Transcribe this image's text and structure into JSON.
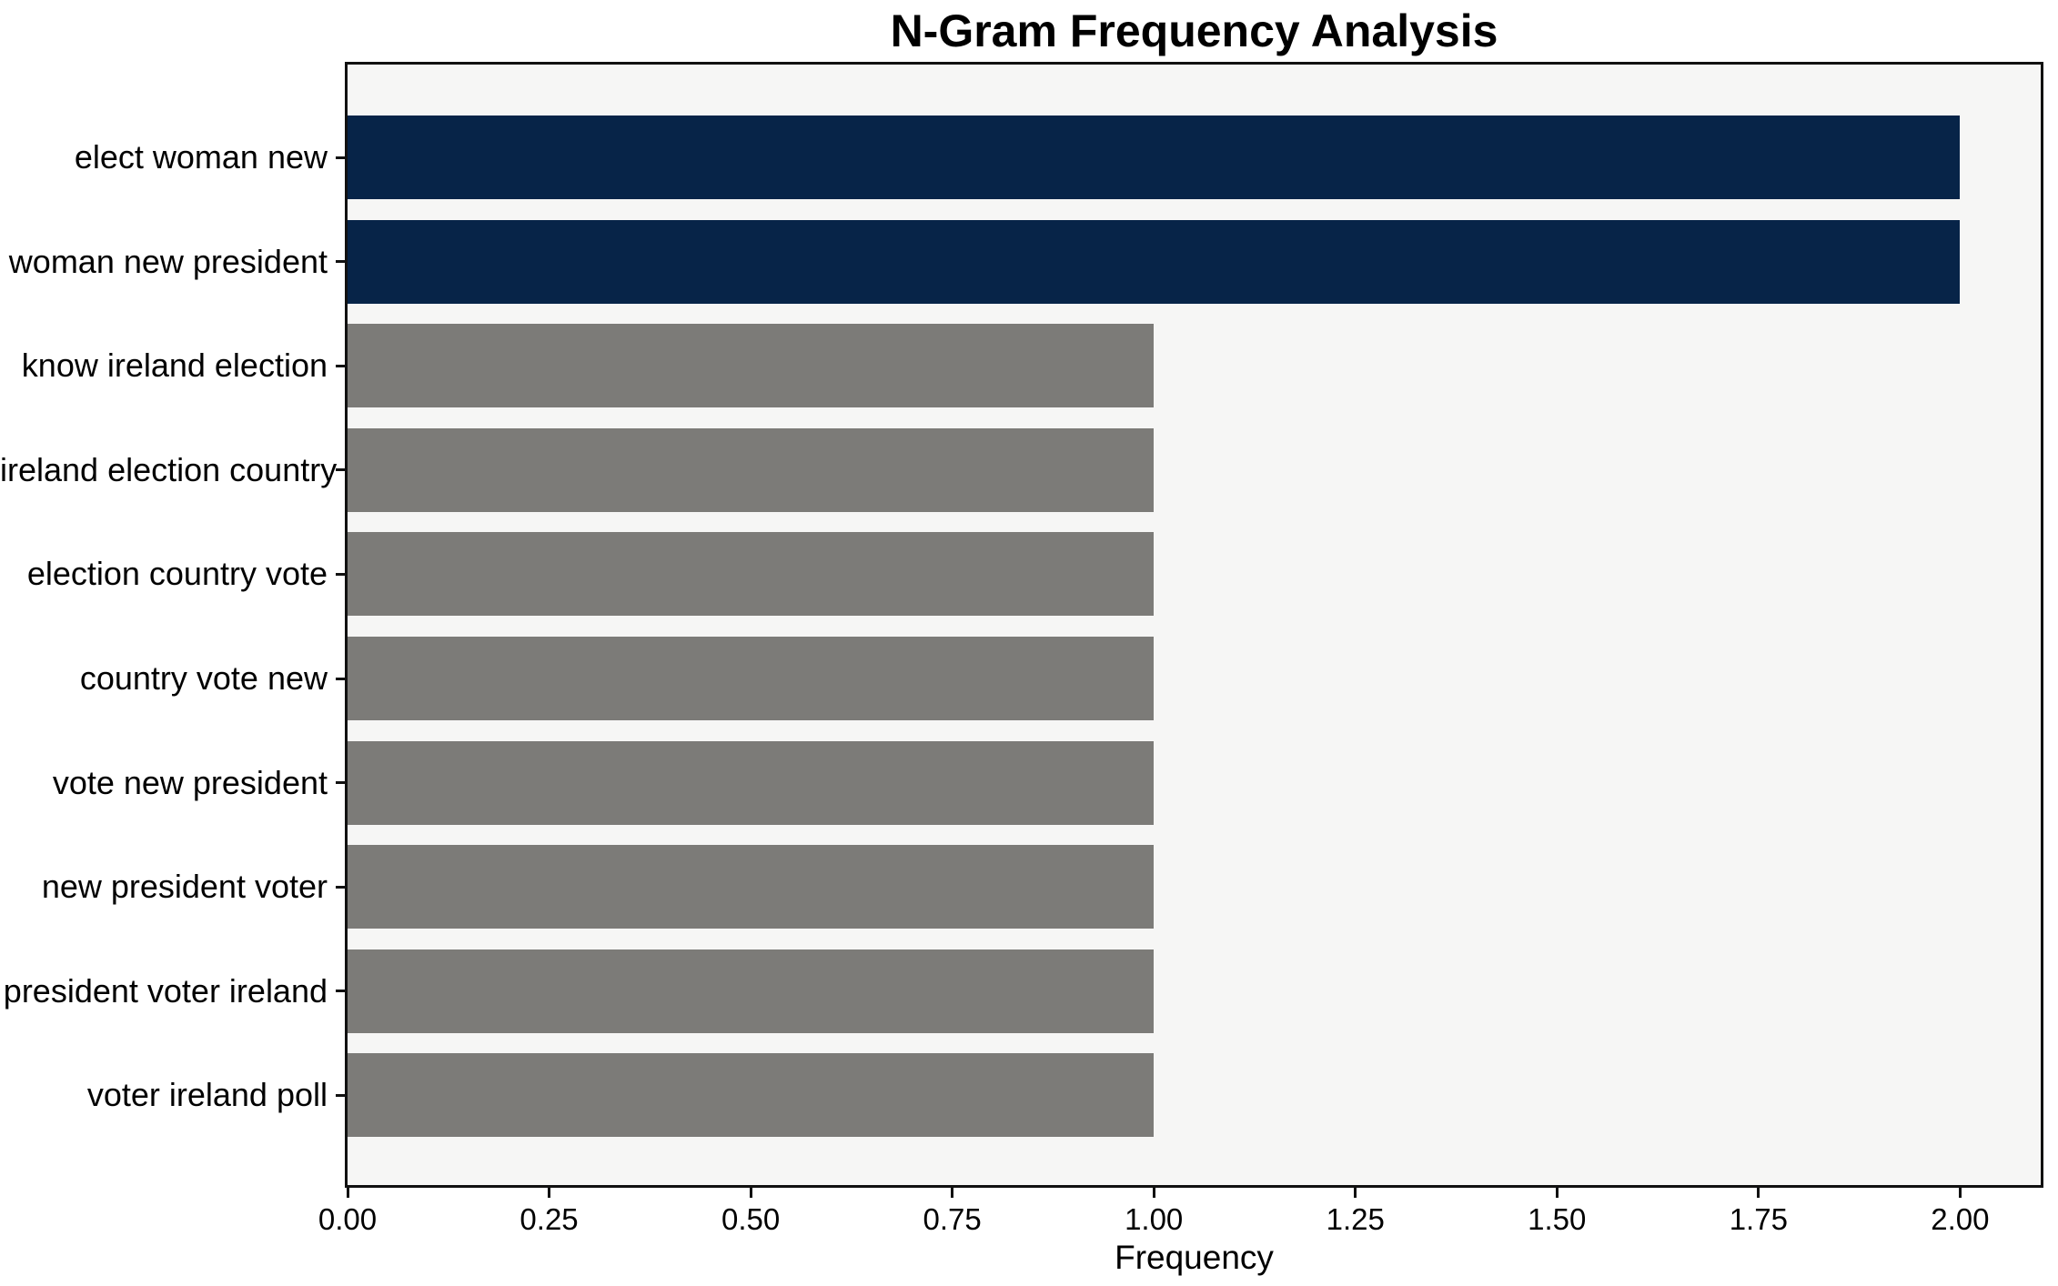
{
  "figure": {
    "background": "#ffffff",
    "plot_background": "#f6f6f5",
    "spine_color": "#111111"
  },
  "chart_data": {
    "type": "bar",
    "orientation": "horizontal",
    "title": "N-Gram Frequency Analysis",
    "xlabel": "Frequency",
    "ylabel": "",
    "categories": [
      "elect woman new",
      "woman new president",
      "know ireland election",
      "ireland election country",
      "election country vote",
      "country vote new",
      "vote new president",
      "new president voter",
      "president voter ireland",
      "voter ireland poll"
    ],
    "values": [
      2,
      2,
      1,
      1,
      1,
      1,
      1,
      1,
      1,
      1
    ],
    "bar_colors": [
      "#072448",
      "#072448",
      "#7c7b78",
      "#7c7b78",
      "#7c7b78",
      "#7c7b78",
      "#7c7b78",
      "#7c7b78",
      "#7c7b78",
      "#7c7b78"
    ],
    "highlight_color": "#072448",
    "default_color": "#7c7b78",
    "xlim": [
      0,
      2.1
    ],
    "xticks": [
      0.0,
      0.25,
      0.5,
      0.75,
      1.0,
      1.25,
      1.5,
      1.75,
      2.0
    ],
    "xtick_labels": [
      "0.00",
      "0.25",
      "0.50",
      "0.75",
      "1.00",
      "1.25",
      "1.50",
      "1.75",
      "2.00"
    ],
    "grid": false,
    "legend": null
  }
}
